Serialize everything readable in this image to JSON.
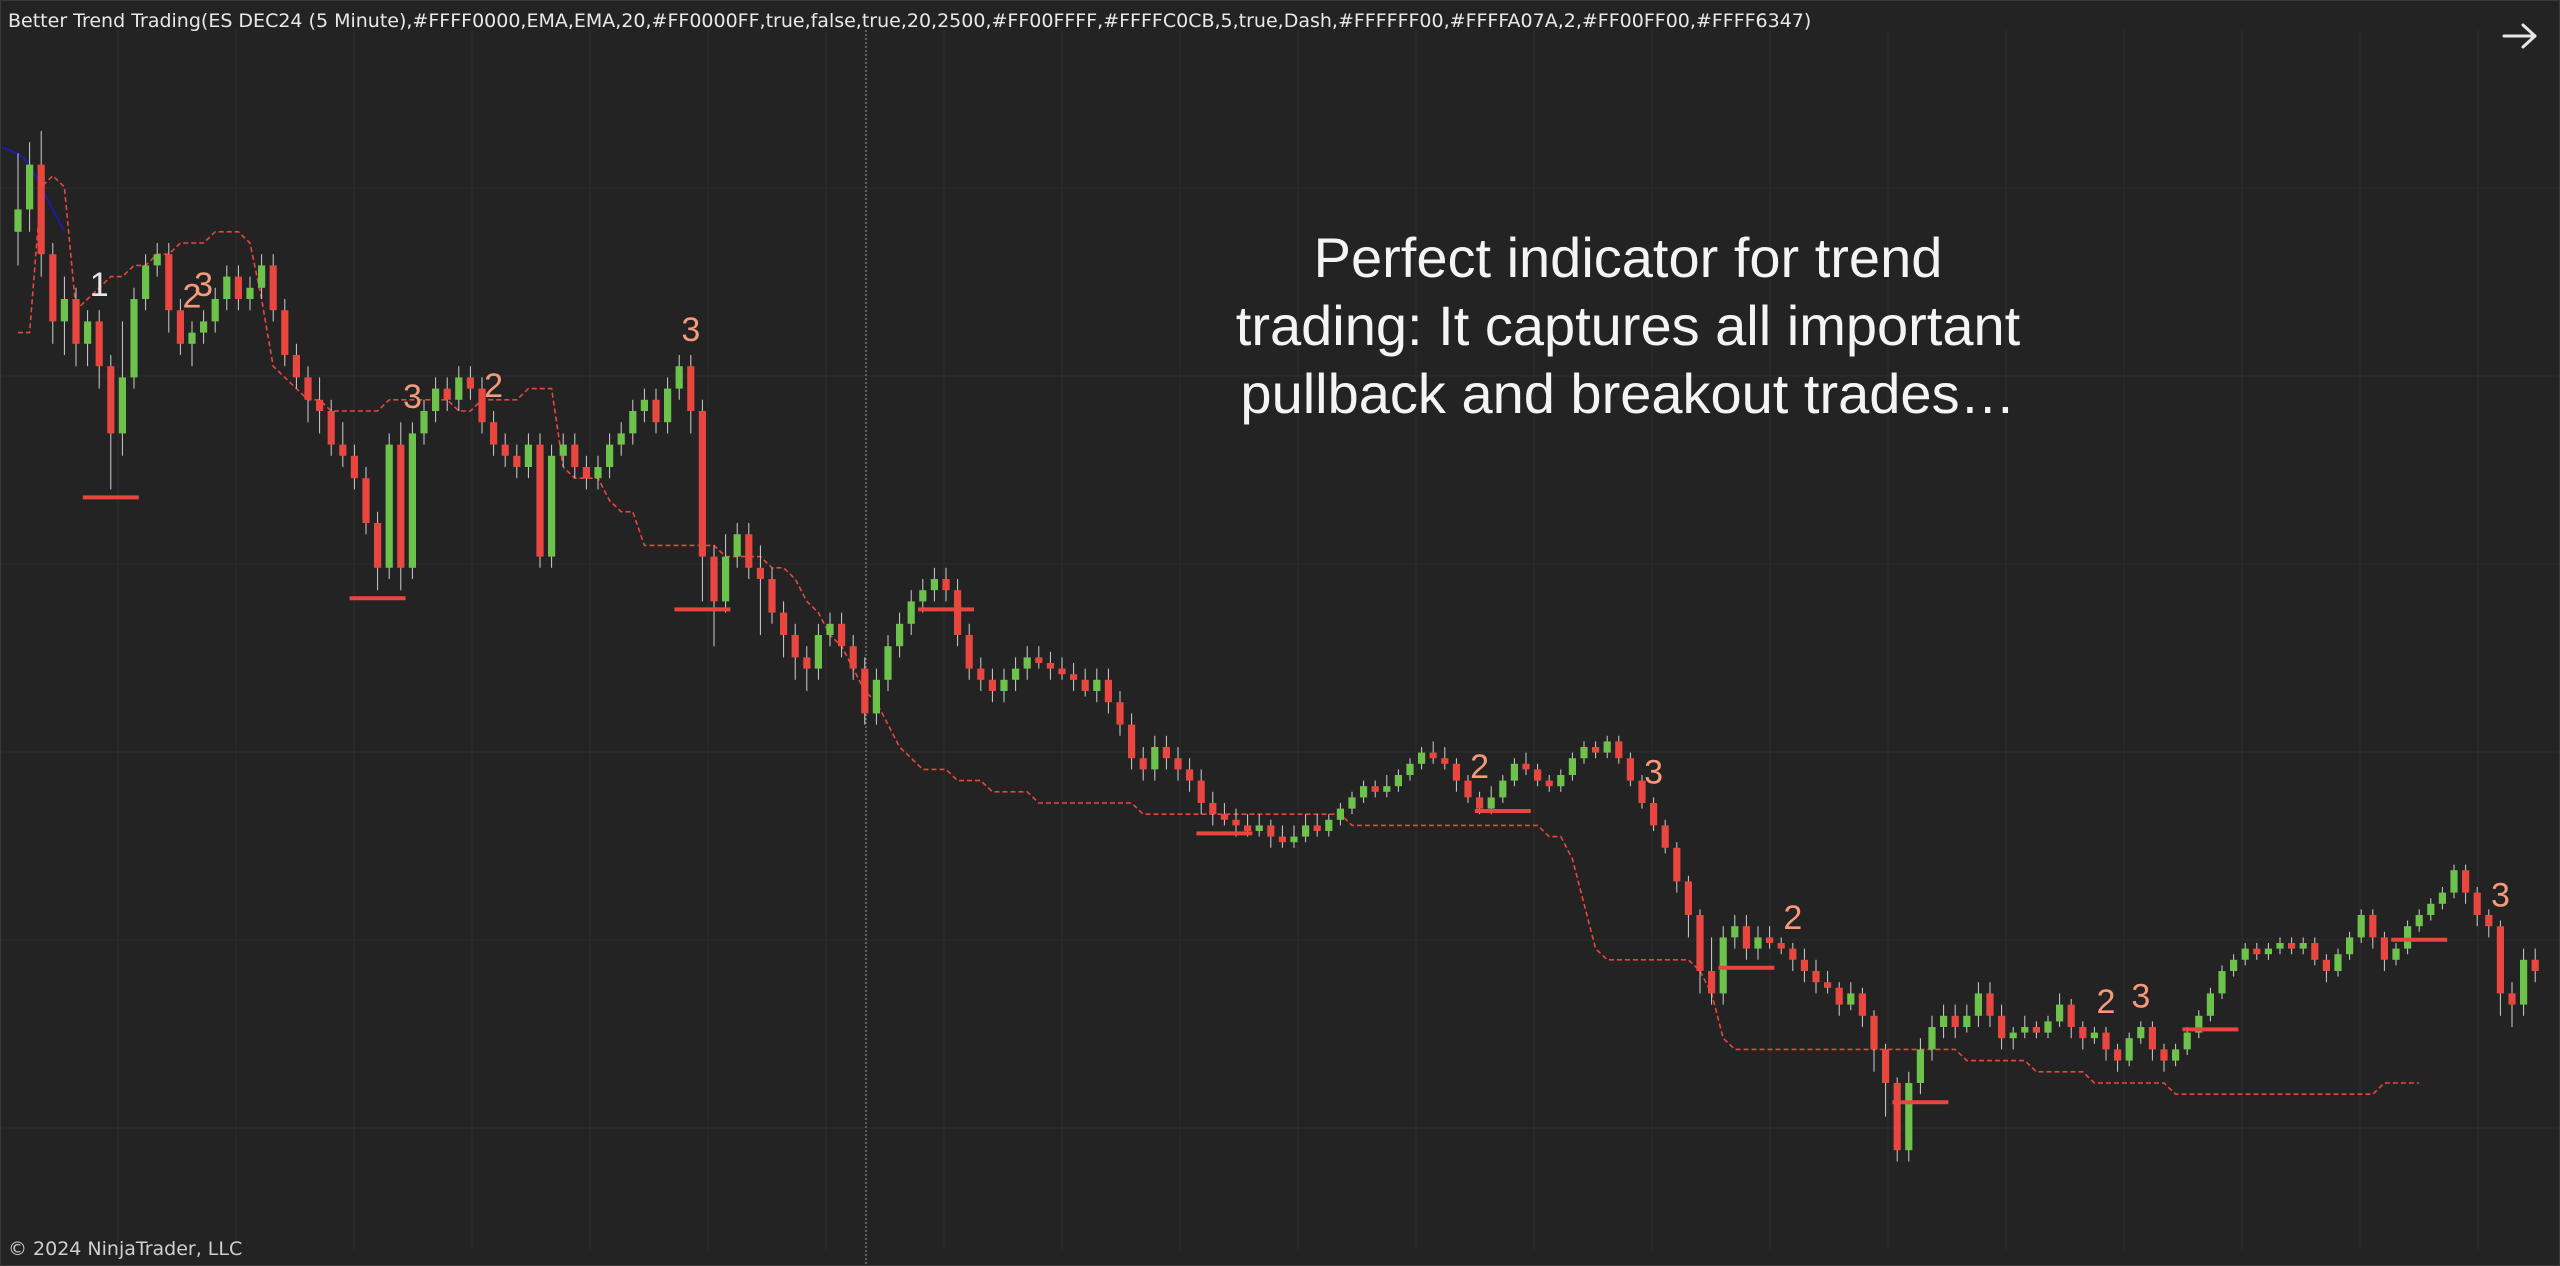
{
  "header": {
    "indicator_title": "Better Trend Trading(ES DEC24 (5 Minute),#FFFF0000,EMA,EMA,20,#FF0000FF,true,false,true,20,2500,#FF00FFFF,#FFFFC0CB,5,true,Dash,#FFFFFF00,#FFFFA07A,2,#FF00FF00,#FFFF6347)"
  },
  "footer": {
    "copyright": "© 2024 NinjaTrader, LLC"
  },
  "annotation": {
    "lines": [
      "Perfect indicator for trend",
      "trading: It captures all important",
      "pullback and breakout trades…"
    ]
  },
  "icons": {
    "navigate": "arrow-right-icon"
  },
  "colors": {
    "background": "#232323",
    "up_candle": "#6cc24a",
    "down_candle": "#e8463f",
    "trend_line": "#e8463f",
    "signal_label": "#f59a7a",
    "wave1_label": "#e6e6e6",
    "grid": "#2e2e2e",
    "ema": "#1c1ca8"
  },
  "chart_data": {
    "type": "candlestick",
    "title": "",
    "xlabel": "",
    "ylabel": "",
    "price_range": [
      0,
      100
    ],
    "grid": true,
    "cursor_line": true,
    "candles": [
      [
        86,
        88,
        93,
        83
      ],
      [
        88,
        92,
        94,
        86
      ],
      [
        92,
        84,
        95,
        82
      ],
      [
        84,
        78,
        85,
        76
      ],
      [
        78,
        80,
        82,
        75
      ],
      [
        80,
        76,
        81,
        74
      ],
      [
        76,
        78,
        79,
        74
      ],
      [
        78,
        74,
        79,
        72
      ],
      [
        74,
        68,
        75,
        63
      ],
      [
        68,
        73,
        78,
        66
      ],
      [
        73,
        80,
        81,
        72
      ],
      [
        80,
        83,
        84,
        79
      ],
      [
        83,
        84,
        85,
        82
      ],
      [
        84,
        79,
        85,
        77
      ],
      [
        79,
        76,
        80,
        75
      ],
      [
        76,
        77,
        78,
        74
      ],
      [
        77,
        78,
        79,
        76
      ],
      [
        78,
        80,
        81,
        77
      ],
      [
        80,
        82,
        83,
        79
      ],
      [
        82,
        80,
        83,
        79
      ],
      [
        80,
        81,
        82,
        79
      ],
      [
        81,
        83,
        84,
        80
      ],
      [
        83,
        79,
        84,
        78
      ],
      [
        79,
        75,
        80,
        74
      ],
      [
        75,
        73,
        76,
        72
      ],
      [
        73,
        71,
        74,
        69
      ],
      [
        71,
        70,
        73,
        68
      ],
      [
        70,
        67,
        71,
        66
      ],
      [
        67,
        66,
        69,
        65
      ],
      [
        66,
        64,
        67,
        63
      ],
      [
        64,
        60,
        65,
        59
      ],
      [
        60,
        56,
        61,
        54
      ],
      [
        56,
        67,
        68,
        55
      ],
      [
        67,
        56,
        69,
        54
      ],
      [
        56,
        68,
        69,
        55
      ],
      [
        68,
        70,
        71,
        67
      ],
      [
        70,
        72,
        73,
        69
      ],
      [
        72,
        71,
        73,
        70
      ],
      [
        71,
        73,
        74,
        70
      ],
      [
        73,
        72,
        74,
        71
      ],
      [
        72,
        69,
        73,
        68
      ],
      [
        69,
        67,
        70,
        66
      ],
      [
        67,
        66,
        68,
        65
      ],
      [
        66,
        65,
        67,
        64
      ],
      [
        65,
        67,
        68,
        64
      ],
      [
        67,
        57,
        68,
        56
      ],
      [
        57,
        66,
        67,
        56
      ],
      [
        66,
        67,
        68,
        65
      ],
      [
        67,
        65,
        68,
        64
      ],
      [
        65,
        64,
        66,
        63
      ],
      [
        64,
        65,
        66,
        63
      ],
      [
        65,
        67,
        68,
        64
      ],
      [
        67,
        68,
        69,
        66
      ],
      [
        68,
        70,
        71,
        67
      ],
      [
        70,
        71,
        72,
        69
      ],
      [
        71,
        69,
        72,
        68
      ],
      [
        69,
        72,
        73,
        68
      ],
      [
        72,
        74,
        75,
        71
      ],
      [
        74,
        70,
        75,
        68
      ],
      [
        70,
        57,
        71,
        53
      ],
      [
        57,
        53,
        58,
        49
      ],
      [
        53,
        57,
        59,
        52
      ],
      [
        57,
        59,
        60,
        56
      ],
      [
        59,
        56,
        60,
        55
      ],
      [
        56,
        55,
        58,
        50
      ],
      [
        55,
        52,
        56,
        51
      ],
      [
        52,
        50,
        53,
        48
      ],
      [
        50,
        48,
        51,
        46
      ],
      [
        48,
        47,
        49,
        45
      ],
      [
        47,
        50,
        51,
        46
      ],
      [
        50,
        51,
        52,
        49
      ],
      [
        51,
        49,
        52,
        48
      ],
      [
        49,
        47,
        50,
        46
      ],
      [
        47,
        43,
        48,
        42
      ],
      [
        43,
        46,
        47,
        42
      ],
      [
        46,
        49,
        50,
        45
      ],
      [
        49,
        51,
        52,
        48
      ],
      [
        51,
        53,
        54,
        50
      ],
      [
        53,
        54,
        55,
        52
      ],
      [
        54,
        55,
        56,
        53
      ],
      [
        55,
        54,
        56,
        53
      ],
      [
        54,
        50,
        55,
        49
      ],
      [
        50,
        47,
        51,
        46
      ],
      [
        47,
        46,
        48,
        45
      ],
      [
        46,
        45,
        47,
        44
      ],
      [
        45,
        46,
        47,
        44
      ],
      [
        46,
        47,
        48,
        45
      ],
      [
        47,
        48,
        49,
        46
      ],
      [
        48,
        47.5,
        49,
        47
      ],
      [
        47.5,
        47,
        48.5,
        46
      ],
      [
        47,
        46.5,
        48,
        46
      ],
      [
        46.5,
        46,
        47.5,
        45
      ],
      [
        46,
        45,
        47,
        44.5
      ],
      [
        45,
        46,
        47,
        44
      ],
      [
        46,
        44,
        47,
        43
      ],
      [
        44,
        42,
        45,
        41
      ],
      [
        42,
        39,
        43,
        38
      ],
      [
        39,
        38,
        40,
        37
      ],
      [
        38,
        40,
        41,
        37
      ],
      [
        40,
        39,
        41,
        38
      ],
      [
        39,
        38,
        40,
        37
      ],
      [
        38,
        37,
        39,
        36
      ],
      [
        37,
        35,
        38,
        34
      ],
      [
        35,
        34,
        36,
        33
      ],
      [
        34,
        33.5,
        35,
        33
      ],
      [
        33.5,
        33,
        34.5,
        32
      ],
      [
        33,
        32.5,
        34,
        32
      ],
      [
        32.5,
        33,
        34,
        32
      ],
      [
        33,
        32,
        33.5,
        31
      ],
      [
        32,
        31.5,
        33,
        31
      ],
      [
        31.5,
        32,
        33,
        31
      ],
      [
        32,
        33,
        34,
        31.5
      ],
      [
        33,
        32.5,
        34,
        32
      ],
      [
        32.5,
        33.5,
        34,
        32
      ],
      [
        33.5,
        34.5,
        35,
        33
      ],
      [
        34.5,
        35.5,
        36,
        34
      ],
      [
        35.5,
        36.5,
        37,
        35
      ],
      [
        36.5,
        36,
        37,
        35.5
      ],
      [
        36,
        36.5,
        37.5,
        35.5
      ],
      [
        36.5,
        37.5,
        38,
        36
      ],
      [
        37.5,
        38.5,
        39,
        37
      ],
      [
        38.5,
        39.5,
        40,
        38
      ],
      [
        39.5,
        39,
        40.5,
        38.5
      ],
      [
        39,
        38.5,
        40,
        38
      ],
      [
        38.5,
        37,
        39,
        36
      ],
      [
        37,
        35.5,
        37.5,
        35
      ],
      [
        35.5,
        34.5,
        36,
        34
      ],
      [
        34.5,
        35.5,
        36.5,
        34
      ],
      [
        35.5,
        37,
        37.5,
        35
      ],
      [
        37,
        38.5,
        39,
        36.5
      ],
      [
        38.5,
        38,
        39.5,
        37.5
      ],
      [
        38,
        37,
        38.5,
        36.5
      ],
      [
        37,
        36.5,
        37.5,
        36
      ],
      [
        36.5,
        37.5,
        38,
        36
      ],
      [
        37.5,
        39,
        39.5,
        37
      ],
      [
        39,
        40,
        40.5,
        38.5
      ],
      [
        40,
        39.5,
        40.5,
        39
      ],
      [
        39.5,
        40.5,
        41,
        39
      ],
      [
        40.5,
        39,
        41,
        38.5
      ],
      [
        39,
        37,
        39.5,
        36.5
      ],
      [
        37,
        35,
        37.5,
        34.5
      ],
      [
        35,
        33,
        35.5,
        32.5
      ],
      [
        33,
        31,
        33.5,
        30.5
      ],
      [
        31,
        28,
        31.5,
        27
      ],
      [
        28,
        25,
        28.5,
        23
      ],
      [
        25,
        20,
        25.5,
        18
      ],
      [
        20,
        18,
        23,
        17
      ],
      [
        18,
        23,
        24,
        17
      ],
      [
        23,
        24,
        25,
        22
      ],
      [
        24,
        22,
        25,
        21
      ],
      [
        22,
        23,
        24,
        21
      ],
      [
        23,
        22.5,
        24,
        22
      ],
      [
        22.5,
        22,
        23,
        21.5
      ],
      [
        22,
        21,
        22.5,
        20
      ],
      [
        21,
        20,
        22,
        19
      ],
      [
        20,
        19,
        21,
        18
      ],
      [
        19,
        18.5,
        20,
        18
      ],
      [
        18.5,
        17,
        19,
        16
      ],
      [
        17,
        18,
        19,
        16.5
      ],
      [
        18,
        16,
        18.5,
        15
      ],
      [
        16,
        13,
        16.5,
        11
      ],
      [
        13,
        10,
        13.5,
        7
      ],
      [
        10,
        4,
        10.5,
        3
      ],
      [
        4,
        10,
        11,
        3
      ],
      [
        10,
        13,
        14,
        9
      ],
      [
        13,
        15,
        16,
        12
      ],
      [
        15,
        16,
        17,
        14
      ],
      [
        16,
        15,
        17,
        14
      ],
      [
        15,
        16,
        17,
        14.5
      ],
      [
        16,
        18,
        19,
        15
      ],
      [
        18,
        16,
        19,
        15
      ],
      [
        16,
        14,
        17,
        13
      ],
      [
        14,
        14.5,
        15,
        13
      ],
      [
        14.5,
        15,
        16,
        14
      ],
      [
        15,
        14.5,
        15.5,
        14
      ],
      [
        14.5,
        15.5,
        16,
        14
      ],
      [
        15.5,
        17,
        18,
        15
      ],
      [
        17,
        15,
        17.5,
        14
      ],
      [
        15,
        14,
        15.5,
        13
      ],
      [
        14,
        14.5,
        15,
        13.5
      ],
      [
        14.5,
        13,
        15,
        12
      ],
      [
        13,
        12,
        13.5,
        11
      ],
      [
        12,
        14,
        14.5,
        11.5
      ],
      [
        14,
        15,
        15.5,
        13.5
      ],
      [
        15,
        13,
        15.5,
        12
      ],
      [
        13,
        12,
        13.5,
        11
      ],
      [
        12,
        13,
        13.5,
        11.5
      ],
      [
        13,
        14.5,
        15,
        12.5
      ],
      [
        14.5,
        16,
        16.5,
        14
      ],
      [
        16,
        18,
        18.5,
        15.5
      ],
      [
        18,
        20,
        20.5,
        17.5
      ],
      [
        20,
        21,
        21.5,
        19.5
      ],
      [
        21,
        22,
        22.5,
        20.5
      ],
      [
        22,
        21.5,
        22.5,
        21
      ],
      [
        21.5,
        22,
        22.5,
        21
      ],
      [
        22,
        22.5,
        23,
        21.5
      ],
      [
        22.5,
        22,
        23,
        21.5
      ],
      [
        22,
        22.5,
        23,
        21.5
      ],
      [
        22.5,
        21,
        23,
        20.5
      ],
      [
        21,
        20,
        21.5,
        19
      ],
      [
        20,
        21.5,
        22,
        19.5
      ],
      [
        21.5,
        23,
        23.5,
        21
      ],
      [
        23,
        25,
        25.5,
        22.5
      ],
      [
        25,
        23,
        25.5,
        22
      ],
      [
        23,
        21,
        23.5,
        20
      ],
      [
        21,
        22,
        22.5,
        20.5
      ],
      [
        22,
        24,
        24.5,
        21.5
      ],
      [
        24,
        25,
        25.5,
        23.5
      ],
      [
        25,
        26,
        26.5,
        24.5
      ],
      [
        26,
        27,
        27.5,
        25.5
      ],
      [
        27,
        29,
        29.5,
        26.5
      ],
      [
        29,
        27,
        29.5,
        26
      ],
      [
        27,
        25,
        27.5,
        24
      ],
      [
        25,
        24,
        25.5,
        23
      ],
      [
        24,
        18,
        24.5,
        16
      ],
      [
        18,
        17,
        19,
        15
      ],
      [
        17,
        21,
        22,
        16
      ],
      [
        21,
        20,
        22,
        19
      ]
    ],
    "trend_line": [
      77,
      77,
      90,
      91,
      90,
      79,
      80,
      81,
      82,
      82,
      83,
      83,
      84,
      84,
      85,
      85,
      85,
      86,
      86,
      86,
      85,
      80,
      74,
      73,
      72,
      71,
      71,
      70,
      70,
      70,
      70,
      70,
      71,
      71,
      71,
      71,
      71,
      71,
      70,
      70,
      71,
      71,
      71,
      71,
      72,
      72,
      72,
      65,
      64,
      64,
      64,
      62,
      61,
      61,
      58,
      58,
      58,
      58,
      58,
      58,
      58,
      57,
      57,
      57,
      57,
      56,
      56,
      55,
      53,
      52,
      50,
      49,
      47,
      45,
      44,
      42,
      40,
      39,
      38,
      38,
      38,
      37,
      37,
      37,
      36,
      36,
      36,
      36,
      35,
      35,
      35,
      35,
      35,
      35,
      35,
      35,
      35,
      34,
      34,
      34,
      34,
      34,
      34,
      34,
      34,
      34,
      34,
      34,
      34,
      34,
      34,
      34,
      34,
      34,
      34,
      33,
      33,
      33,
      33,
      33,
      33,
      33,
      33,
      33,
      33,
      33,
      33,
      33,
      33,
      33,
      33,
      33,
      32,
      32,
      30,
      26,
      22,
      21,
      21,
      21,
      21,
      21,
      21,
      21,
      21,
      20,
      18,
      14,
      13,
      13,
      13,
      13,
      13,
      13,
      13,
      13,
      13,
      13,
      13,
      13,
      13,
      13,
      13,
      13,
      13,
      13,
      13,
      13,
      12,
      12,
      12,
      12,
      12,
      12,
      11,
      11,
      11,
      11,
      11,
      10,
      10,
      10,
      10,
      10,
      10,
      10,
      9,
      9,
      9,
      9,
      9,
      9,
      9,
      9,
      9,
      9,
      9,
      9,
      9,
      9,
      9,
      9,
      9,
      9,
      10,
      10,
      10,
      10
    ],
    "ema_segment": {
      "start": 0,
      "end": 4,
      "values": [
        93,
        92,
        90,
        88,
        86
      ]
    },
    "swing_markers": [
      8,
      31,
      59,
      80,
      104,
      128,
      149,
      164,
      189,
      207
    ],
    "wave_labels": [
      {
        "candle": 7,
        "text": "1"
      },
      {
        "candle": 15,
        "text": "2"
      },
      {
        "candle": 16,
        "text": "3"
      },
      {
        "candle": 34,
        "text": "3"
      },
      {
        "candle": 41,
        "text": "2"
      },
      {
        "candle": 58,
        "text": "3"
      },
      {
        "candle": 126,
        "text": "2"
      },
      {
        "candle": 141,
        "text": "3"
      },
      {
        "candle": 153,
        "text": "2"
      },
      {
        "candle": 180,
        "text": "2"
      },
      {
        "candle": 183,
        "text": "3"
      },
      {
        "candle": 214,
        "text": "3"
      }
    ]
  }
}
